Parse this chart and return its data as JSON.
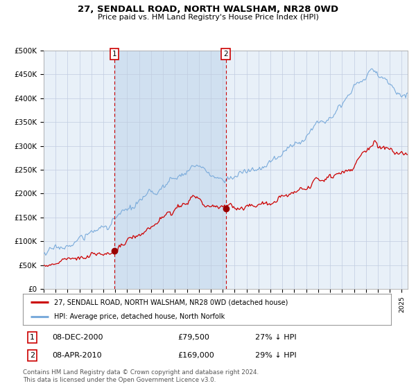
{
  "title1": "27, SENDALL ROAD, NORTH WALSHAM, NR28 0WD",
  "title2": "Price paid vs. HM Land Registry's House Price Index (HPI)",
  "ylim": [
    0,
    500000
  ],
  "yticks": [
    0,
    50000,
    100000,
    150000,
    200000,
    250000,
    300000,
    350000,
    400000,
    450000,
    500000
  ],
  "ytick_labels": [
    "£0",
    "£50K",
    "£100K",
    "£150K",
    "£200K",
    "£250K",
    "£300K",
    "£350K",
    "£400K",
    "£450K",
    "£500K"
  ],
  "xlim_start": 1995.0,
  "xlim_end": 2025.5,
  "hpi_color": "#7aabdb",
  "price_color": "#cc0000",
  "marker_color": "#990000",
  "bg_color": "#ffffff",
  "plot_bg_color": "#e8f0f8",
  "shade_color": "#d0e0f0",
  "grid_color": "#c0cce0",
  "sale1_x": 2000.92,
  "sale1_y": 79500,
  "sale2_x": 2010.25,
  "sale2_y": 169000,
  "sale1_label": "08-DEC-2000",
  "sale1_price": "£79,500",
  "sale1_hpi": "27% ↓ HPI",
  "sale2_label": "08-APR-2010",
  "sale2_price": "£169,000",
  "sale2_hpi": "29% ↓ HPI",
  "legend_label1": "27, SENDALL ROAD, NORTH WALSHAM, NR28 0WD (detached house)",
  "legend_label2": "HPI: Average price, detached house, North Norfolk",
  "footnote": "Contains HM Land Registry data © Crown copyright and database right 2024.\nThis data is licensed under the Open Government Licence v3.0.",
  "shaded_start": 2000.92,
  "shaded_end": 2010.25
}
